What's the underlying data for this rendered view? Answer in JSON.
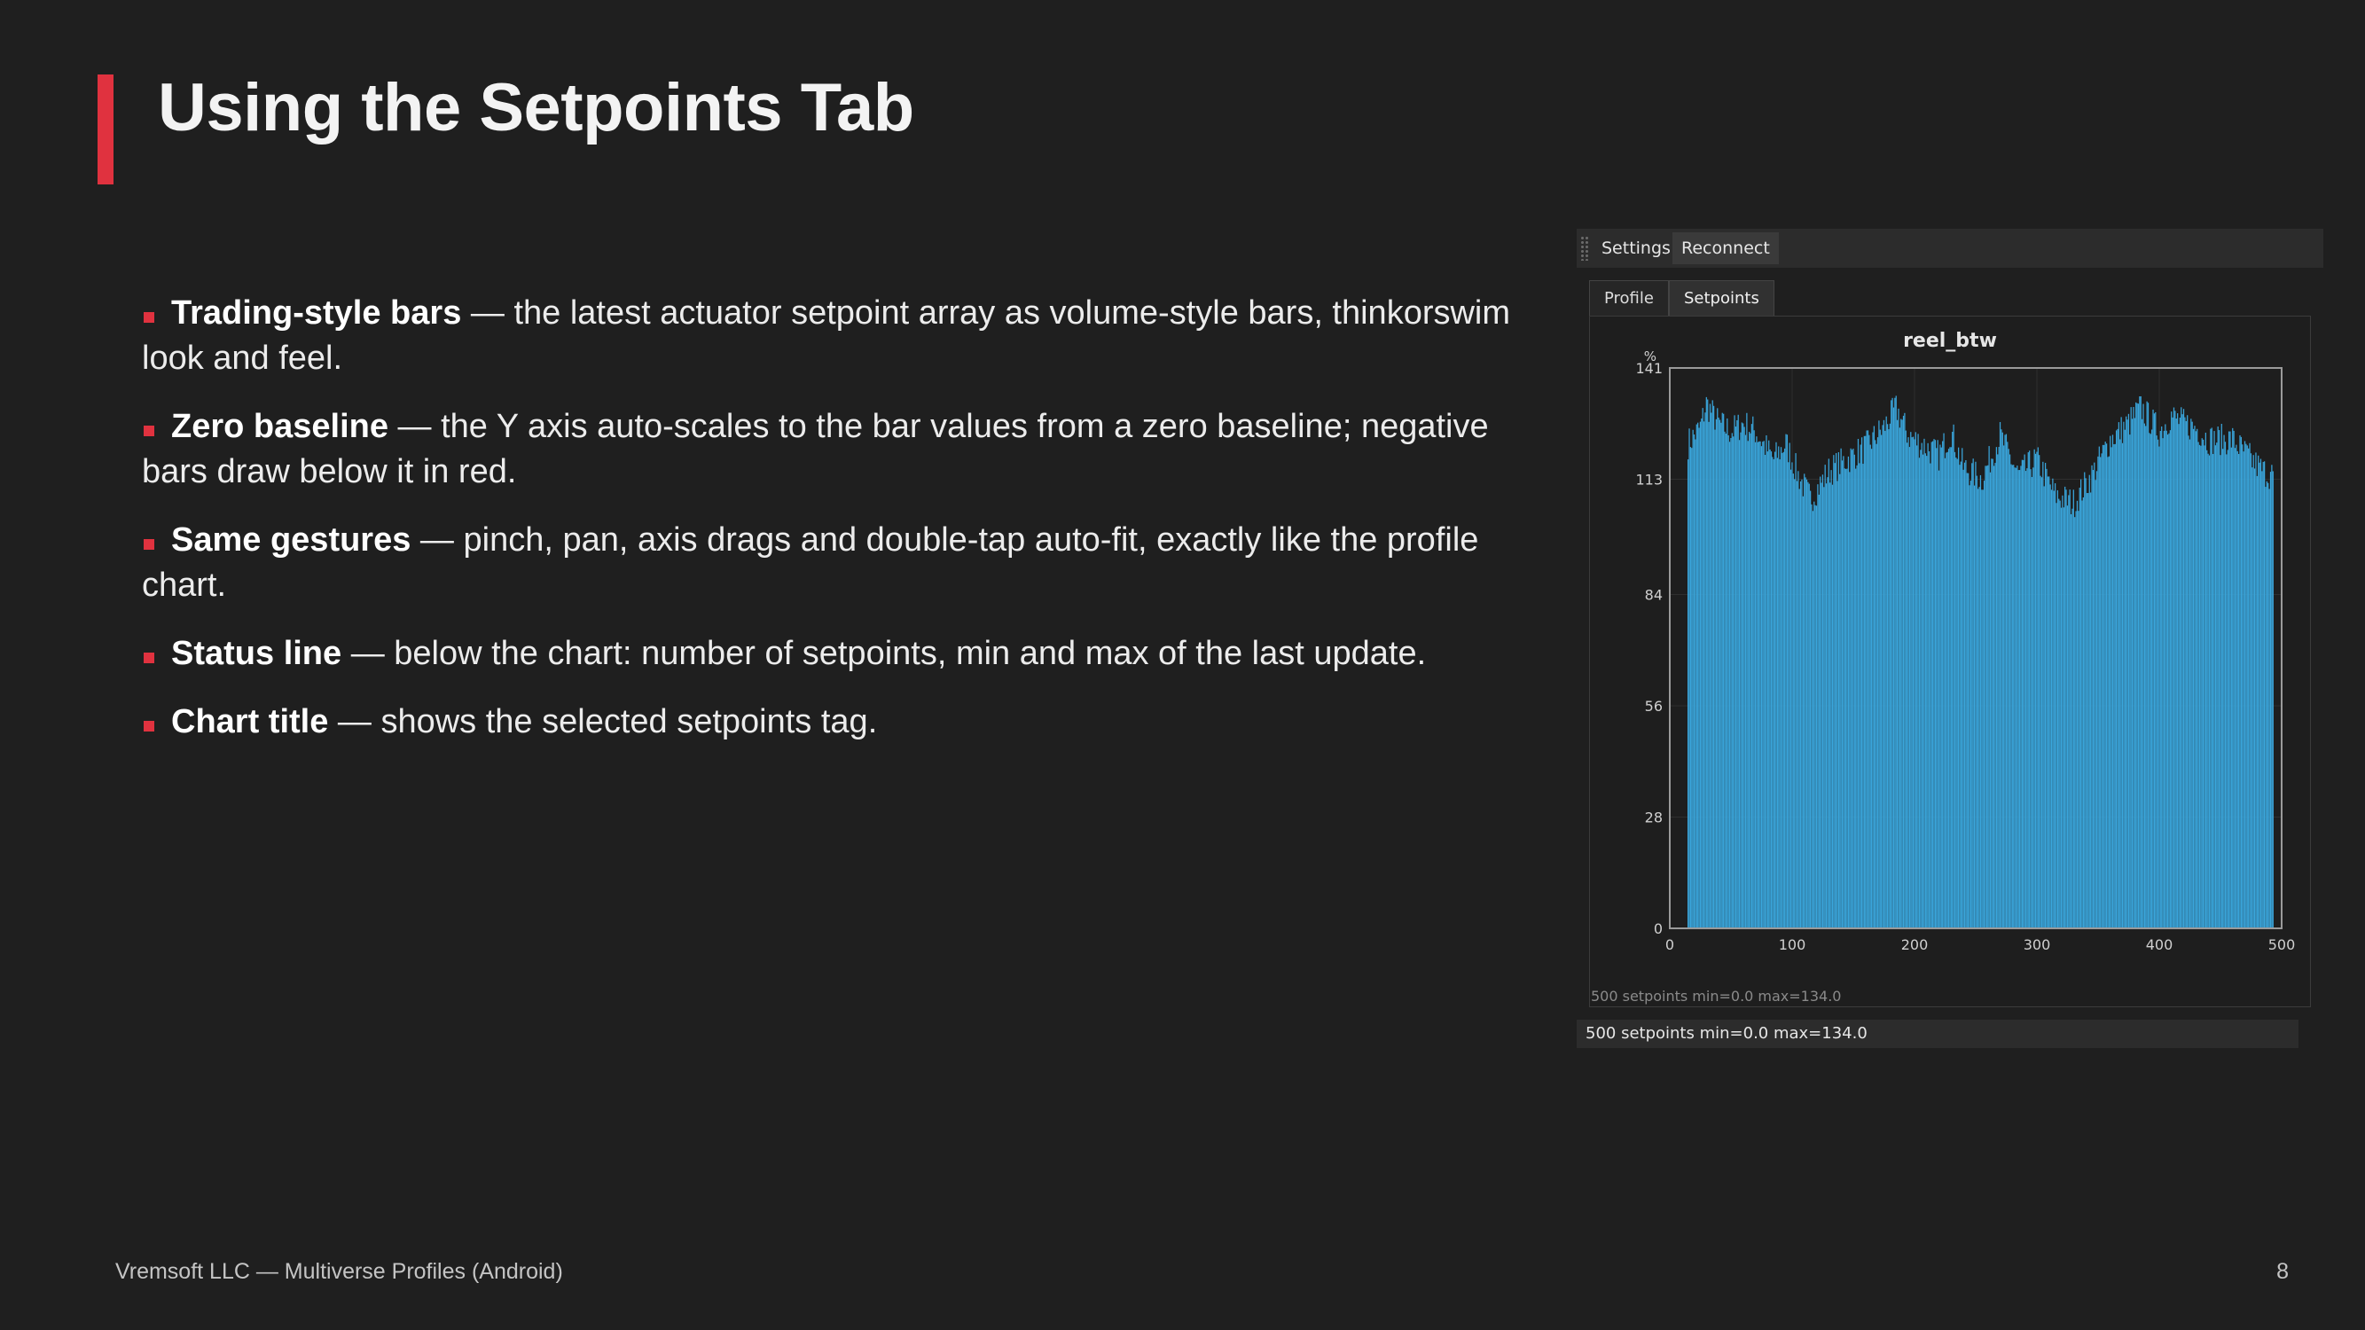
{
  "slide": {
    "title": "Using the Setpoints Tab",
    "bullets": [
      {
        "term": "Trading-style bars",
        "text": " — the latest actuator setpoint array as volume-style bars, thinkorswim look and feel."
      },
      {
        "term": "Zero baseline",
        "text": " — the Y axis auto-scales to the bar values from a zero baseline; negative bars draw below it in red."
      },
      {
        "term": "Same gestures",
        "text": " — pinch, pan, axis drags and double-tap auto-fit, exactly like the profile chart."
      },
      {
        "term": "Status line",
        "text": " — below the chart: number of setpoints, min and max of the last update."
      },
      {
        "term": "Chart title",
        "text": " — shows the selected setpoints tag."
      }
    ],
    "footer": "Vremsoft LLC — Multiverse Profiles (Android)",
    "page_number": "8",
    "accent_color": "#e0323f"
  },
  "app": {
    "toolbar": {
      "settings_label": "Settings",
      "reconnect_label": "Reconnect"
    },
    "tabs": [
      {
        "label": "Profile",
        "active": false
      },
      {
        "label": "Setpoints",
        "active": true
      }
    ],
    "inner_status": "500 setpoints  min=0.0  max=134.0",
    "status_bar": "500 setpoints  min=0.0  max=134.0",
    "bar_color": "#3aa6dc"
  },
  "chart_data": {
    "type": "bar",
    "title": "reel_btw",
    "ylabel": "%",
    "xlabel": "",
    "xlim": [
      0,
      500
    ],
    "ylim": [
      0,
      141
    ],
    "x_ticks": [
      0,
      100,
      200,
      300,
      400,
      500
    ],
    "y_ticks": [
      0,
      28,
      56,
      84,
      113,
      141
    ],
    "x_range_bars": [
      15,
      493
    ],
    "bar_count": 500,
    "envelope": [
      [
        15,
        122
      ],
      [
        25,
        126
      ],
      [
        30,
        132
      ],
      [
        40,
        127
      ],
      [
        50,
        125
      ],
      [
        60,
        127
      ],
      [
        70,
        125
      ],
      [
        85,
        118
      ],
      [
        95,
        122
      ],
      [
        105,
        114
      ],
      [
        115,
        108
      ],
      [
        130,
        115
      ],
      [
        145,
        118
      ],
      [
        160,
        121
      ],
      [
        175,
        126
      ],
      [
        185,
        131
      ],
      [
        195,
        124
      ],
      [
        210,
        121
      ],
      [
        220,
        119
      ],
      [
        230,
        125
      ],
      [
        240,
        116
      ],
      [
        255,
        113
      ],
      [
        270,
        124
      ],
      [
        285,
        114
      ],
      [
        300,
        118
      ],
      [
        315,
        109
      ],
      [
        330,
        107
      ],
      [
        345,
        114
      ],
      [
        360,
        123
      ],
      [
        375,
        127
      ],
      [
        385,
        131
      ],
      [
        400,
        125
      ],
      [
        410,
        129
      ],
      [
        420,
        127
      ],
      [
        430,
        126
      ],
      [
        440,
        123
      ],
      [
        460,
        123
      ],
      [
        475,
        118
      ],
      [
        485,
        115
      ],
      [
        493,
        114
      ]
    ],
    "min": 0.0,
    "max": 134.0,
    "grid": true,
    "legend": "none"
  }
}
